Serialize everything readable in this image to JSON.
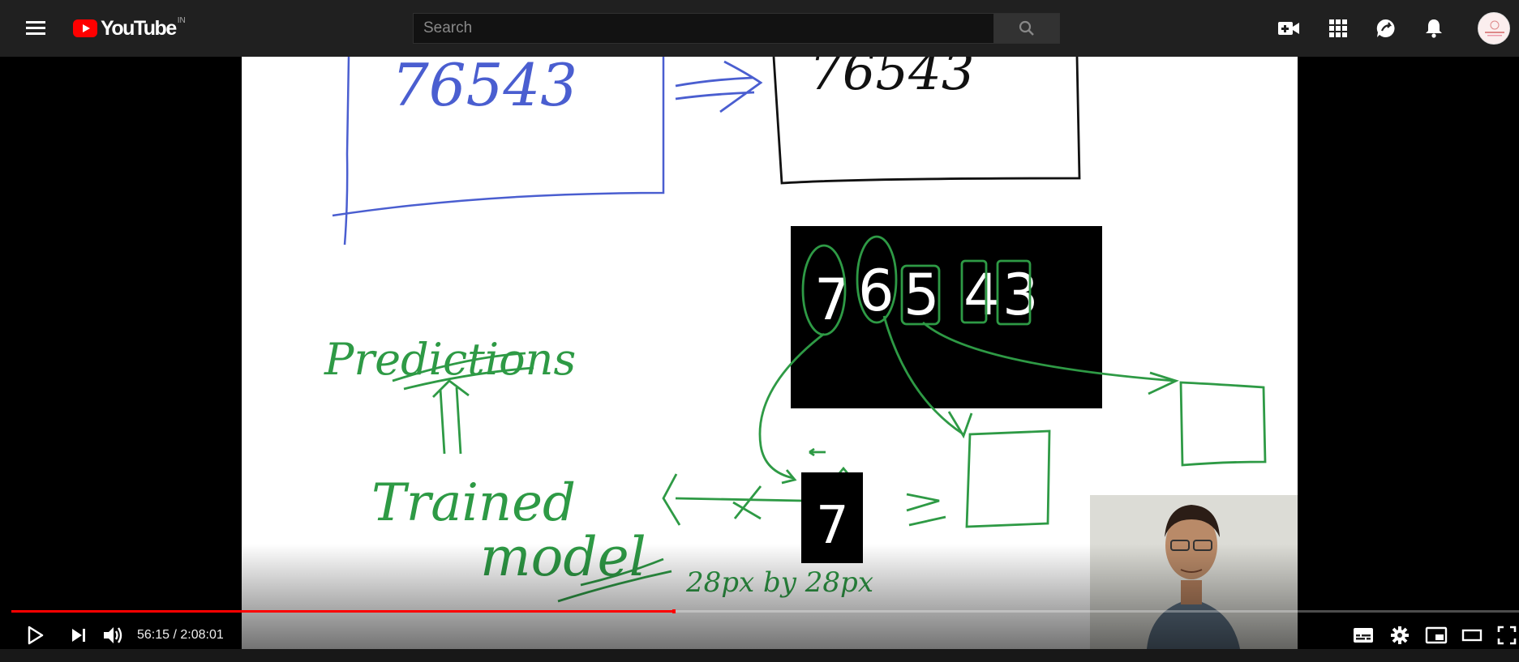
{
  "header": {
    "logo_text": "YouTube",
    "region": "IN",
    "search_placeholder": "Search",
    "icons": [
      "menu-icon",
      "create-video-icon",
      "apps-grid-icon",
      "messages-icon",
      "notifications-bell-icon",
      "avatar"
    ]
  },
  "player": {
    "current_time": "56:15",
    "duration": "2:08:01",
    "time_display": "56:15 / 2:08:01",
    "progress_fraction": 0.4395,
    "accent": "#ff0000",
    "controls": [
      "play-icon",
      "next-icon",
      "volume-icon",
      "subtitles-icon",
      "settings-icon",
      "miniplayer-icon",
      "theater-icon",
      "fullscreen-icon"
    ]
  },
  "whiteboard": {
    "top_left_box_text": "76543",
    "top_right_box_text": "76543",
    "digits": [
      "7",
      "6",
      "5",
      "4",
      "3"
    ],
    "label_predictions": "Predictions",
    "label_trained": "Trained",
    "label_model": "model",
    "single_digit": "7",
    "dimension_text": "28px by 28px",
    "ink_colors": {
      "blue": "#4a5ed0",
      "green": "#2e9a45",
      "black": "#111111"
    }
  }
}
